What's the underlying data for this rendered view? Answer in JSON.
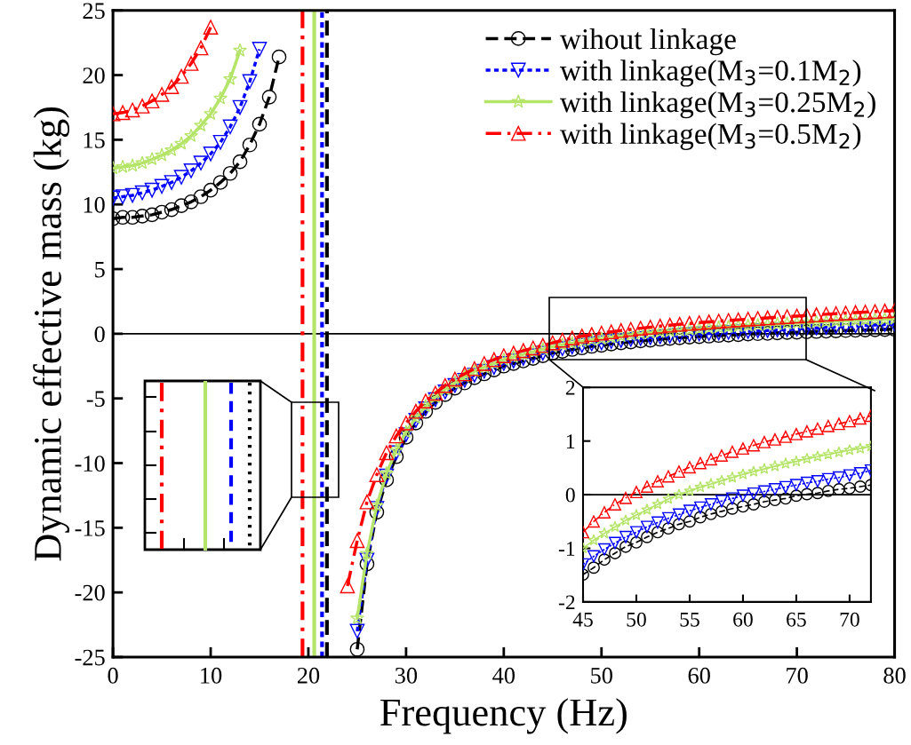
{
  "chart_data": [
    {
      "type": "line",
      "xlabel": "Frequency (Hz)",
      "ylabel": "Dynamic effective mass (kg)",
      "xlim": [
        0,
        80
      ],
      "ylim": [
        -25,
        25
      ],
      "xticks": [
        0,
        10,
        20,
        30,
        40,
        50,
        60,
        70,
        80
      ],
      "yticks": [
        -25,
        -20,
        -15,
        -10,
        -5,
        0,
        5,
        10,
        15,
        20,
        25
      ],
      "grid": false,
      "legend": "top right",
      "series": [
        {
          "name": "wihout linkage",
          "color": "#000000",
          "marker": "circle",
          "line_style": "dashed",
          "x": [
            0,
            1,
            2,
            3,
            4,
            5,
            6,
            7,
            8,
            9,
            10,
            11,
            12,
            13,
            14,
            15,
            16,
            17,
            22,
            25,
            26,
            27,
            28,
            29,
            30,
            31,
            32,
            33,
            34,
            35,
            36,
            37,
            38,
            39,
            40,
            41,
            42,
            43,
            44,
            45,
            46,
            47,
            48,
            49,
            50,
            51,
            52,
            53,
            54,
            55,
            56,
            57,
            58,
            59,
            60,
            61,
            62,
            63,
            64,
            65,
            66,
            67,
            68,
            69,
            70,
            71,
            72,
            73,
            74,
            75,
            76,
            77,
            78,
            79,
            80
          ],
          "values": [
            8.9,
            9.0,
            9.0,
            9.1,
            9.2,
            9.4,
            9.6,
            9.9,
            10.2,
            10.6,
            11.1,
            11.7,
            12.4,
            13.3,
            14.6,
            16.2,
            18.3,
            21.4,
            null,
            -24.4,
            -17.8,
            -13.8,
            -11.3,
            -9.5,
            -8.0,
            -6.9,
            -6.0,
            -5.3,
            -4.7,
            -4.2,
            -3.8,
            -3.4,
            -3.1,
            -2.8,
            -2.5,
            -2.3,
            -2.1,
            -1.9,
            -1.7,
            -1.49,
            -1.36,
            -1.21,
            -1.09,
            -0.97,
            -0.89,
            -0.79,
            -0.7,
            -0.63,
            -0.55,
            -0.5,
            -0.42,
            -0.36,
            -0.31,
            -0.26,
            -0.22,
            -0.18,
            -0.13,
            -0.1,
            -0.07,
            -0.02,
            0.01,
            0.03,
            0.07,
            0.1,
            0.12,
            0.15,
            0.18,
            0.2,
            0.22,
            0.25,
            0.27,
            0.29,
            0.31,
            0.33,
            0.35
          ]
        },
        {
          "name": "with linkage(M$_{3}$=0.1M$_{2}$)",
          "color": "#0000ff",
          "marker": "triangle_down",
          "line_style": "dotted",
          "x": [
            0,
            1,
            2,
            3,
            4,
            5,
            6,
            7,
            8,
            9,
            10,
            11,
            12,
            13,
            14,
            15,
            22,
            25,
            26,
            27,
            28,
            29,
            30,
            31,
            32,
            33,
            34,
            35,
            36,
            37,
            38,
            39,
            40,
            41,
            42,
            43,
            44,
            45,
            46,
            47,
            48,
            49,
            50,
            51,
            52,
            53,
            54,
            55,
            56,
            57,
            58,
            59,
            60,
            61,
            62,
            63,
            64,
            65,
            66,
            67,
            68,
            69,
            70,
            71,
            72,
            73,
            74,
            75,
            76,
            77,
            78,
            79,
            80
          ],
          "values": [
            10.5,
            10.6,
            10.7,
            10.9,
            11.1,
            11.4,
            11.7,
            12.1,
            12.6,
            13.2,
            13.9,
            14.8,
            16.0,
            17.5,
            19.5,
            22.0,
            null,
            -23,
            -17.5,
            -13.5,
            -11,
            -9.2,
            -7.8,
            -6.7,
            -5.8,
            -5.1,
            -4.5,
            -4.0,
            -3.6,
            -3.2,
            -2.9,
            -2.6,
            -2.3,
            -2.1,
            -1.9,
            -1.7,
            -1.5,
            -1.3,
            -1.15,
            -1.02,
            -0.9,
            -0.79,
            -0.7,
            -0.6,
            -0.52,
            -0.44,
            -0.37,
            -0.3,
            -0.24,
            -0.18,
            -0.12,
            -0.07,
            -0.02,
            0.02,
            0.06,
            0.1,
            0.14,
            0.18,
            0.22,
            0.25,
            0.29,
            0.32,
            0.36,
            0.4,
            0.45,
            0.49,
            0.53,
            0.57,
            0.61,
            0.64,
            0.68,
            0.71,
            0.74
          ]
        },
        {
          "name": "with linkage(M$_{3}$=0.25M$_{2}$)",
          "color": "#b4e468",
          "marker": "star",
          "line_style": "solid",
          "x": [
            0,
            1,
            2,
            3,
            4,
            5,
            6,
            7,
            8,
            9,
            10,
            11,
            12,
            13,
            22,
            25,
            26,
            27,
            28,
            29,
            30,
            31,
            32,
            33,
            34,
            35,
            36,
            37,
            38,
            39,
            40,
            41,
            42,
            43,
            44,
            45,
            46,
            47,
            48,
            49,
            50,
            51,
            52,
            53,
            54,
            55,
            56,
            57,
            58,
            59,
            60,
            61,
            62,
            63,
            64,
            65,
            66,
            67,
            68,
            69,
            70,
            71,
            72,
            73,
            74,
            75,
            76,
            77,
            78,
            79,
            80
          ],
          "values": [
            12.8,
            12.9,
            13.0,
            13.2,
            13.5,
            13.8,
            14.2,
            14.7,
            15.3,
            16.1,
            17.0,
            18.2,
            19.7,
            21.9,
            null,
            -22,
            -17,
            -13.3,
            -10.8,
            -9.0,
            -7.6,
            -6.5,
            -5.6,
            -4.9,
            -4.3,
            -3.8,
            -3.3,
            -2.9,
            -2.6,
            -2.3,
            -2.0,
            -1.8,
            -1.6,
            -1.4,
            -1.2,
            -1.0,
            -0.85,
            -0.72,
            -0.6,
            -0.48,
            -0.38,
            -0.28,
            -0.18,
            -0.08,
            0.0,
            0.07,
            0.14,
            0.2,
            0.26,
            0.32,
            0.38,
            0.43,
            0.48,
            0.53,
            0.58,
            0.62,
            0.67,
            0.71,
            0.75,
            0.79,
            0.83,
            0.86,
            0.9,
            0.93,
            0.97,
            1.0,
            1.04,
            1.07,
            1.1,
            1.13,
            1.16
          ]
        },
        {
          "name": "with linkage(M$_{3}$=0.5M$_{2}$)",
          "color": "#ff0000",
          "marker": "triangle",
          "line_style": "dashdot",
          "x": [
            0,
            1,
            2,
            3,
            4,
            5,
            6,
            7,
            8,
            9,
            10,
            22,
            24,
            25,
            26,
            27,
            28,
            29,
            30,
            31,
            32,
            33,
            34,
            35,
            36,
            37,
            38,
            39,
            40,
            41,
            42,
            43,
            44,
            45,
            46,
            47,
            48,
            49,
            50,
            51,
            52,
            53,
            54,
            55,
            56,
            57,
            58,
            59,
            60,
            61,
            62,
            63,
            64,
            65,
            66,
            67,
            68,
            69,
            70,
            71,
            72,
            73,
            74,
            75,
            76,
            77,
            78,
            79,
            80
          ],
          "values": [
            17.0,
            17.1,
            17.3,
            17.6,
            18.0,
            18.5,
            19.1,
            19.9,
            20.9,
            22.1,
            23.7,
            null,
            -19.5,
            -16.0,
            -13.0,
            -10.9,
            -9.2,
            -7.9,
            -6.9,
            -6.0,
            -5.2,
            -4.6,
            -4.0,
            -3.5,
            -3.1,
            -2.7,
            -2.3,
            -2.0,
            -1.7,
            -1.5,
            -1.3,
            -1.1,
            -0.9,
            -0.7,
            -0.5,
            -0.33,
            -0.18,
            -0.06,
            0.05,
            0.15,
            0.25,
            0.34,
            0.43,
            0.51,
            0.59,
            0.66,
            0.73,
            0.8,
            0.86,
            0.92,
            0.98,
            1.03,
            1.08,
            1.13,
            1.18,
            1.23,
            1.28,
            1.32,
            1.37,
            1.42,
            1.47,
            1.51,
            1.56,
            1.6,
            1.64,
            1.68,
            1.72,
            1.76,
            1.8
          ]
        }
      ],
      "ref_lines": [
        {
          "axis": "y",
          "value": 0,
          "color": "#000000",
          "line_style": "solid"
        },
        {
          "axis": "x",
          "value": 19.4,
          "color": "#ff0000",
          "line_style": "dashdot"
        },
        {
          "axis": "x",
          "value": 20.6,
          "color": "#b4e468",
          "line_style": "solid"
        },
        {
          "axis": "x",
          "value": 21.4,
          "color": "#0000ff",
          "line_style": "dotted"
        },
        {
          "axis": "x",
          "value": 21.9,
          "color": "#000000",
          "line_style": "dashed"
        }
      ]
    },
    {
      "type": "line",
      "xlim": [
        45,
        72
      ],
      "ylim": [
        -2,
        2
      ],
      "xticks": [
        45,
        50,
        55,
        60,
        65,
        70
      ],
      "yticks": [
        -2,
        -1,
        0,
        1,
        2
      ],
      "grid": false,
      "series": [
        {
          "color": "#000000",
          "marker": "circle",
          "line_style": "dashed",
          "x": [
            45,
            46,
            47,
            48,
            49,
            50,
            51,
            52,
            53,
            54,
            55,
            56,
            57,
            58,
            59,
            60,
            61,
            62,
            63,
            64,
            65,
            66,
            67,
            68,
            69,
            70,
            71,
            72
          ],
          "values": [
            -1.49,
            -1.36,
            -1.21,
            -1.09,
            -0.97,
            -0.89,
            -0.79,
            -0.7,
            -0.63,
            -0.55,
            -0.5,
            -0.42,
            -0.36,
            -0.31,
            -0.26,
            -0.22,
            -0.18,
            -0.13,
            -0.1,
            -0.07,
            -0.02,
            0.01,
            0.03,
            0.07,
            0.1,
            0.12,
            0.15,
            0.18
          ]
        },
        {
          "color": "#0000ff",
          "marker": "triangle_down",
          "line_style": "dotted",
          "x": [
            45,
            46,
            47,
            48,
            49,
            50,
            51,
            52,
            53,
            54,
            55,
            56,
            57,
            58,
            59,
            60,
            61,
            62,
            63,
            64,
            65,
            66,
            67,
            68,
            69,
            70,
            71,
            72
          ],
          "values": [
            -1.3,
            -1.15,
            -1.02,
            -0.9,
            -0.79,
            -0.7,
            -0.6,
            -0.52,
            -0.44,
            -0.37,
            -0.3,
            -0.24,
            -0.18,
            -0.12,
            -0.07,
            -0.02,
            0.02,
            0.06,
            0.1,
            0.14,
            0.18,
            0.22,
            0.25,
            0.29,
            0.32,
            0.36,
            0.4,
            0.45
          ]
        },
        {
          "color": "#b4e468",
          "marker": "star",
          "line_style": "solid",
          "x": [
            45,
            46,
            47,
            48,
            49,
            50,
            51,
            52,
            53,
            54,
            55,
            56,
            57,
            58,
            59,
            60,
            61,
            62,
            63,
            64,
            65,
            66,
            67,
            68,
            69,
            70,
            71,
            72
          ],
          "values": [
            -1.0,
            -0.85,
            -0.72,
            -0.6,
            -0.48,
            -0.38,
            -0.28,
            -0.18,
            -0.08,
            0.0,
            0.07,
            0.14,
            0.2,
            0.26,
            0.32,
            0.38,
            0.43,
            0.48,
            0.53,
            0.58,
            0.62,
            0.67,
            0.71,
            0.75,
            0.79,
            0.83,
            0.86,
            0.9
          ]
        },
        {
          "color": "#ff0000",
          "marker": "triangle",
          "line_style": "dashdot",
          "x": [
            45,
            46,
            47,
            48,
            49,
            50,
            51,
            52,
            53,
            54,
            55,
            56,
            57,
            58,
            59,
            60,
            61,
            62,
            63,
            64,
            65,
            66,
            67,
            68,
            69,
            70,
            71,
            72
          ],
          "values": [
            -0.7,
            -0.5,
            -0.33,
            -0.18,
            -0.06,
            0.05,
            0.15,
            0.25,
            0.34,
            0.43,
            0.51,
            0.59,
            0.66,
            0.73,
            0.8,
            0.86,
            0.92,
            0.98,
            1.03,
            1.08,
            1.13,
            1.18,
            1.23,
            1.28,
            1.32,
            1.37,
            1.42,
            1.47
          ]
        }
      ],
      "ref_lines": [
        {
          "axis": "y",
          "value": 0,
          "color": "#000000",
          "line_style": "solid"
        }
      ]
    }
  ]
}
